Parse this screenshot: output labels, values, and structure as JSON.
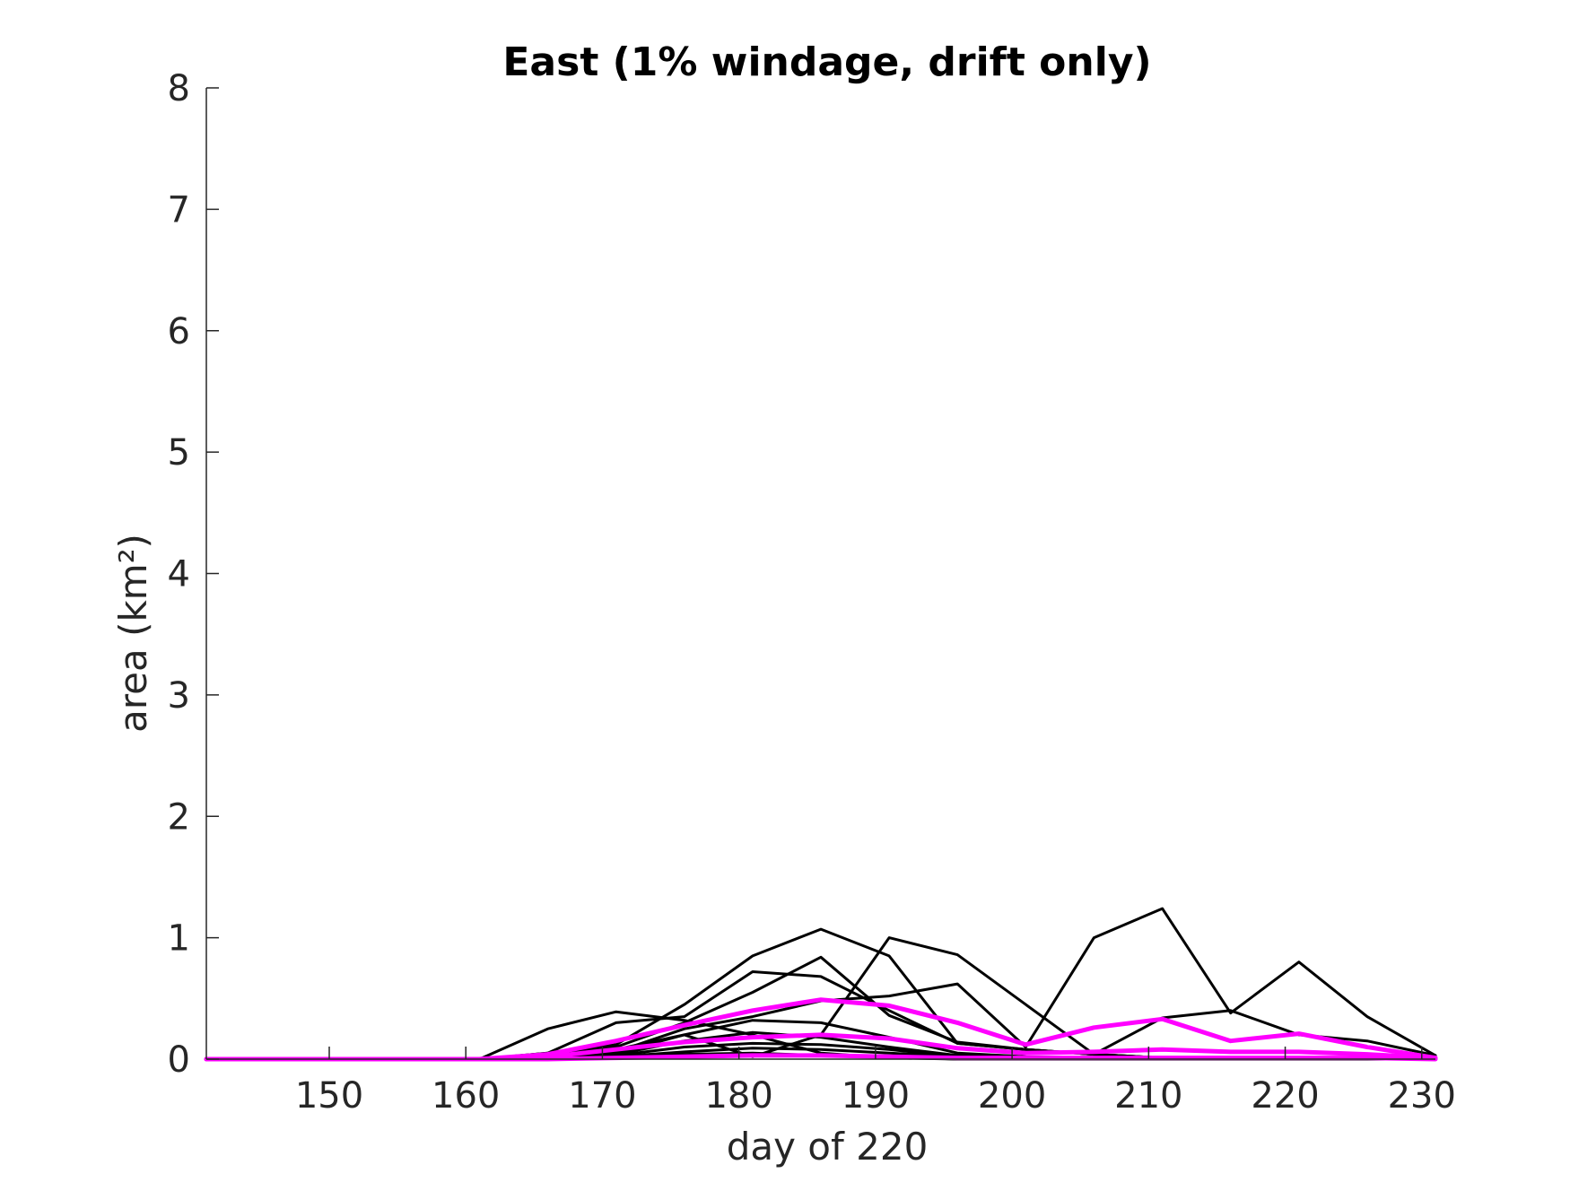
{
  "chart_data": {
    "type": "line",
    "title": "East (1% windage, drift only)",
    "xlabel": "day of 220",
    "ylabel": "area (km²)",
    "xlim": [
      141,
      231
    ],
    "ylim": [
      0,
      8
    ],
    "x_ticks": [
      "150",
      "160",
      "170",
      "180",
      "190",
      "200",
      "210",
      "220",
      "230"
    ],
    "y_ticks": [
      "0",
      "1",
      "2",
      "3",
      "4",
      "5",
      "6",
      "7",
      "8"
    ],
    "grid": false,
    "legend": "none",
    "colors": {
      "ensemble": "#000000",
      "highlight": "#ff00ff",
      "axis": "#262626"
    },
    "x": [
      141,
      146,
      151,
      156,
      161,
      166,
      171,
      176,
      181,
      186,
      191,
      196,
      201,
      206,
      211,
      216,
      221,
      226,
      231
    ],
    "series": [
      {
        "group": "ensemble",
        "values": [
          0,
          0,
          0,
          0,
          0,
          0.25,
          0.39,
          0.32,
          0.2,
          0.05,
          0.01,
          0,
          0,
          0,
          0,
          0,
          0,
          0,
          0
        ]
      },
      {
        "group": "ensemble",
        "values": [
          0,
          0,
          0,
          0,
          0,
          0.05,
          0.3,
          0.35,
          0.72,
          0.68,
          0.4,
          0.13,
          0.08,
          0.04,
          0.01,
          0,
          0,
          0,
          0
        ]
      },
      {
        "group": "ensemble",
        "values": [
          0,
          0,
          0,
          0,
          0,
          0.05,
          0.12,
          0.45,
          0.85,
          1.07,
          0.85,
          0.13,
          0.08,
          0.04,
          0.01,
          0,
          0,
          0,
          0
        ]
      },
      {
        "group": "ensemble",
        "values": [
          0,
          0,
          0,
          0,
          0,
          0.03,
          0.1,
          0.3,
          0.55,
          0.84,
          0.36,
          0.14,
          0.08,
          0.04,
          0.01,
          0,
          0,
          0,
          0
        ]
      },
      {
        "group": "ensemble",
        "values": [
          0,
          0,
          0,
          0,
          0,
          0.02,
          0.08,
          0.2,
          0.02,
          0.2,
          1.0,
          0.86,
          0.45,
          0.04,
          0.34,
          0.4,
          0.2,
          0.15,
          0.03
        ]
      },
      {
        "group": "ensemble",
        "values": [
          0,
          0,
          0,
          0,
          0,
          0.02,
          0.06,
          0.25,
          0.35,
          0.48,
          0.52,
          0.62,
          0.1,
          1.0,
          1.24,
          0.38,
          0.8,
          0.35,
          0.03
        ]
      },
      {
        "group": "ensemble",
        "values": [
          0,
          0,
          0,
          0,
          0,
          0.01,
          0.05,
          0.2,
          0.32,
          0.3,
          0.18,
          0.05,
          0.02,
          0.01,
          0,
          0,
          0,
          0,
          0
        ]
      },
      {
        "group": "ensemble",
        "values": [
          0,
          0,
          0,
          0,
          0,
          0.01,
          0.04,
          0.15,
          0.22,
          0.18,
          0.1,
          0.03,
          0.01,
          0,
          0,
          0,
          0,
          0,
          0
        ]
      },
      {
        "group": "ensemble",
        "values": [
          0,
          0,
          0,
          0,
          0,
          0.01,
          0.03,
          0.1,
          0.13,
          0.12,
          0.08,
          0.02,
          0.01,
          0,
          0,
          0,
          0,
          0,
          0
        ]
      },
      {
        "group": "ensemble",
        "values": [
          0,
          0,
          0,
          0,
          0,
          0.01,
          0.02,
          0.06,
          0.09,
          0.08,
          0.05,
          0.02,
          0,
          0,
          0,
          0,
          0,
          0,
          0
        ]
      },
      {
        "group": "ensemble",
        "values": [
          0,
          0,
          0,
          0,
          0,
          0,
          0.01,
          0.04,
          0.05,
          0.03,
          0.02,
          0,
          0,
          0,
          0,
          0,
          0,
          0,
          0
        ]
      },
      {
        "group": "highlight",
        "values": [
          0,
          0,
          0,
          0,
          0,
          0.04,
          0.15,
          0.28,
          0.4,
          0.49,
          0.44,
          0.3,
          0.12,
          0.26,
          0.33,
          0.15,
          0.21,
          0.1,
          0.01
        ]
      },
      {
        "group": "highlight",
        "values": [
          0,
          0,
          0,
          0,
          0,
          0.02,
          0.08,
          0.14,
          0.18,
          0.2,
          0.17,
          0.09,
          0.05,
          0.06,
          0.08,
          0.06,
          0.06,
          0.04,
          0.01
        ]
      },
      {
        "group": "highlight",
        "values": [
          0,
          0,
          0,
          0,
          0,
          0,
          0.01,
          0.02,
          0.03,
          0.03,
          0.02,
          0.01,
          0.01,
          0.01,
          0.01,
          0.01,
          0.01,
          0.01,
          0
        ]
      }
    ]
  }
}
